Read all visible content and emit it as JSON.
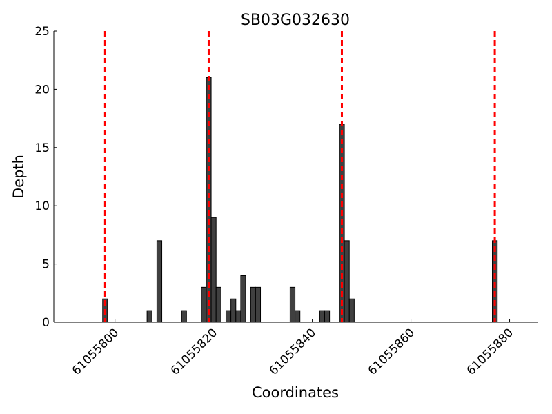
{
  "chart_data": {
    "type": "bar",
    "title": "SB03G032630",
    "x_label": "Coordinates",
    "y_label": "Depth",
    "x": [
      61055798,
      61055807,
      61055809,
      61055814,
      61055818,
      61055819,
      61055820,
      61055821,
      61055823,
      61055824,
      61055825,
      61055826,
      61055828,
      61055829,
      61055836,
      61055837,
      61055842,
      61055843,
      61055846,
      61055847,
      61055848,
      61055877
    ],
    "values": [
      2,
      1,
      7,
      1,
      3,
      21,
      9,
      3,
      1,
      2,
      1,
      4,
      3,
      3,
      3,
      1,
      1,
      1,
      17,
      7,
      2,
      7
    ],
    "color": "#404040",
    "vlines": [
      61055798,
      61055819,
      61055846,
      61055877
    ],
    "vline_color": "#ff0000",
    "xlim": [
      61055787.6,
      61055885.8
    ],
    "ylim": [
      0,
      25
    ],
    "xticks": [
      61055800,
      61055820,
      61055840,
      61055860,
      61055880
    ],
    "yticks": [
      0,
      5,
      10,
      15,
      20,
      25
    ],
    "grid": false
  }
}
